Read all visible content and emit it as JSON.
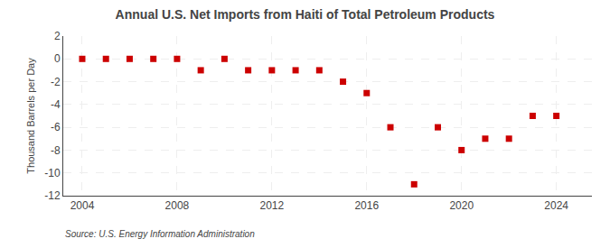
{
  "chart_data": {
    "type": "scatter",
    "title": "Annual U.S. Net Imports from Haiti of Total Petroleum Products",
    "ylabel": "Thousand Barrels per Day",
    "annotations": [
      "Source: U.S. Energy Information Administration"
    ],
    "x": [
      2004,
      2005,
      2006,
      2007,
      2008,
      2009,
      2010,
      2011,
      2012,
      2013,
      2014,
      2015,
      2016,
      2017,
      2018,
      2019,
      2020,
      2021,
      2022,
      2023,
      2024
    ],
    "values": [
      0,
      0,
      0,
      0,
      0,
      -1,
      0,
      -1,
      -1,
      -1,
      -1,
      -2,
      -3,
      -6,
      -11,
      -6,
      -8,
      -7,
      -7,
      -5,
      -5
    ],
    "color": "#cc0000",
    "marker": "square",
    "xlim": [
      2003.2,
      2025.5
    ],
    "xticks": [
      2004,
      2008,
      2012,
      2016,
      2020,
      2024
    ],
    "ylim": [
      -12,
      2
    ],
    "yticks": [
      2,
      0,
      -2,
      -4,
      -6,
      -8,
      -10,
      -12
    ],
    "grid": true
  }
}
